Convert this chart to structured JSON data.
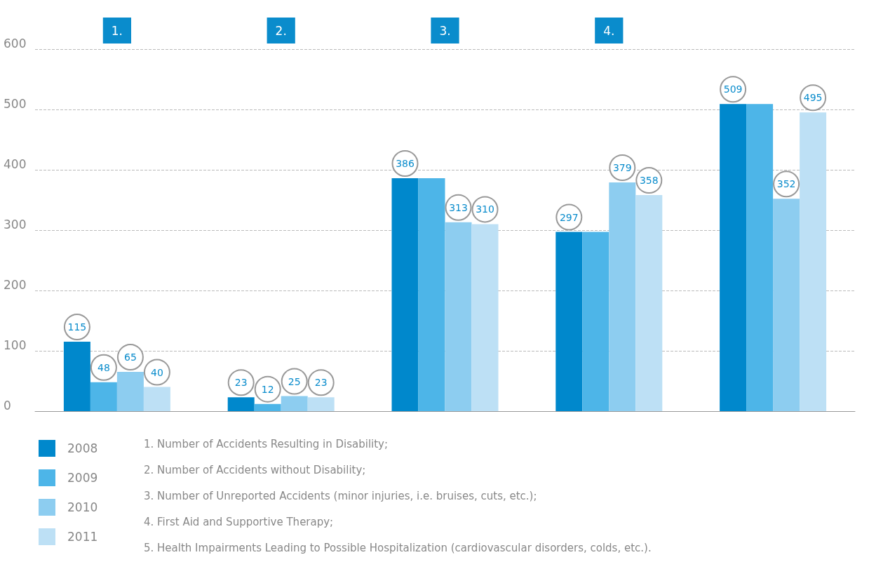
{
  "chart_data": {
    "type": "bar",
    "categories": [
      "1.",
      "2.",
      "3.",
      "4.",
      null
    ],
    "series": [
      {
        "name": "2008",
        "color": "#0088cc",
        "values": [
          115,
          23,
          386,
          297,
          509
        ],
        "value_labels": [
          "115",
          "23",
          "386",
          "297",
          "509"
        ]
      },
      {
        "name": "2009",
        "color": "#4db5e8",
        "values": [
          48,
          12,
          386,
          297,
          509
        ],
        "value_labels": [
          "48",
          "12",
          null,
          null,
          null
        ]
      },
      {
        "name": "2010",
        "color": "#8dcdf0",
        "values": [
          65,
          25,
          313,
          379,
          352
        ],
        "value_labels": [
          "65",
          "25",
          "313",
          "379",
          "352"
        ]
      },
      {
        "name": "2011",
        "color": "#bde0f5",
        "values": [
          40,
          23,
          310,
          358,
          495
        ],
        "value_labels": [
          "40",
          "23",
          "310",
          "358",
          "495"
        ]
      }
    ],
    "ylim": [
      0,
      600
    ],
    "yticks": [
      0,
      100,
      200,
      300,
      400,
      500,
      600
    ],
    "grid": "y",
    "legend": "bottom left",
    "annotations": [
      "1. Number of Accidents Resulting in Disability;",
      "2. Number of Accidents without Disability;",
      "3. Number of Unreported Accidents (minor injuries, i.e. bruises, cuts, etc.);",
      "4. First Aid and Supportive Therapy;",
      "5. Health Impairments Leading to Possible Hospitalization (cardiovascular disorders, colds, etc.)."
    ]
  }
}
